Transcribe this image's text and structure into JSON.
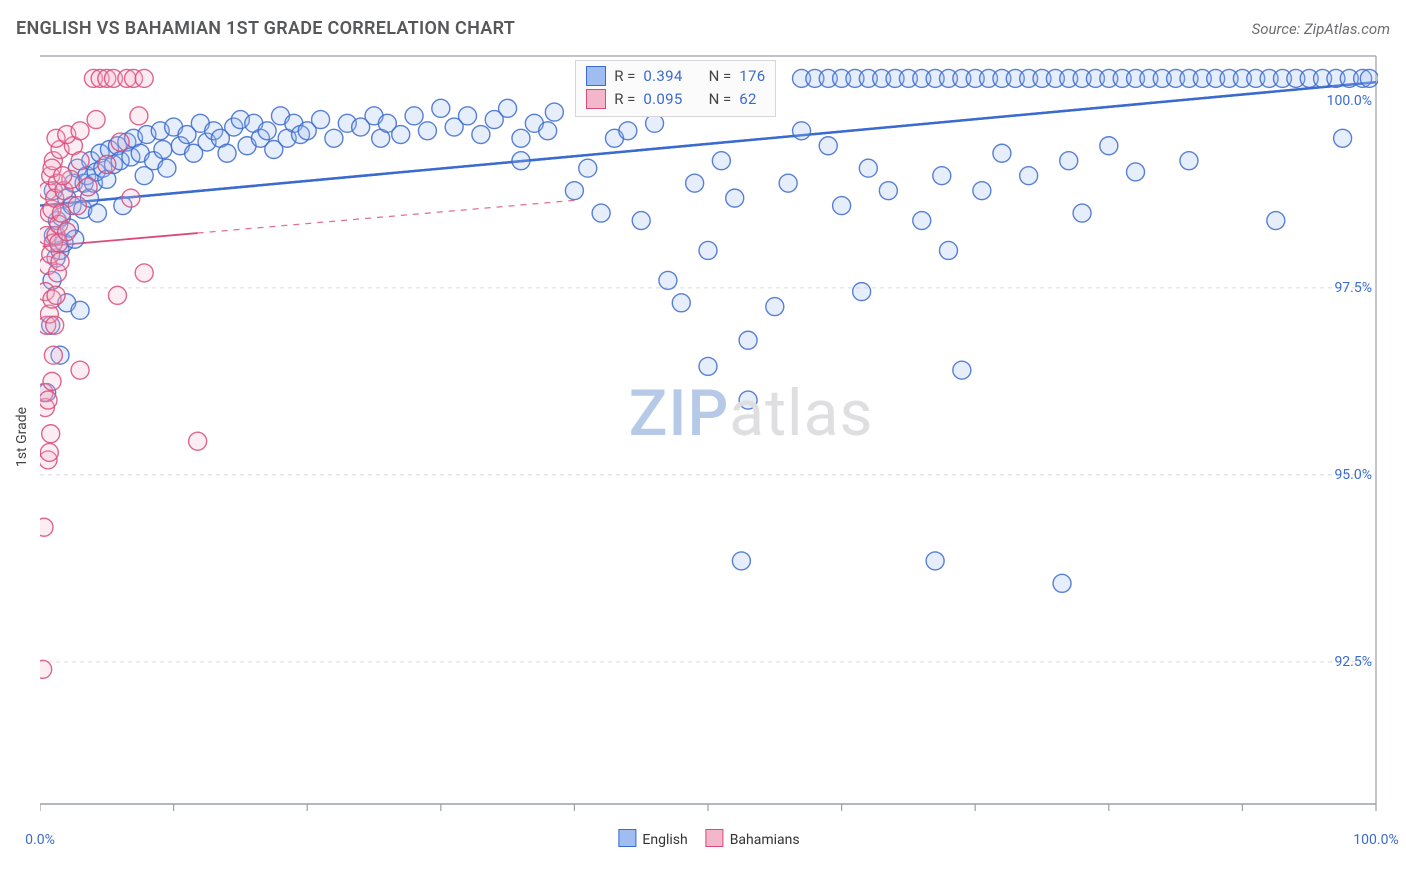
{
  "header": {
    "title": "ENGLISH VS BAHAMIAN 1ST GRADE CORRELATION CHART",
    "source_label": "Source: ZipAtlas.com"
  },
  "watermark": {
    "part1": "ZIP",
    "part2": "atlas"
  },
  "chart": {
    "type": "scatter",
    "background_color": "#ffffff",
    "border_color": "#9aa0a6",
    "grid_color": "#d9dbde",
    "grid_dash": "4,4",
    "ylabel": "1st Grade",
    "xmin": 0,
    "xmax": 100,
    "ymin": 90.6,
    "ymax": 100.6,
    "xticks": [
      0,
      10,
      20,
      30,
      40,
      50,
      60,
      70,
      80,
      90,
      100
    ],
    "xtick_labels": {
      "0": "0.0%",
      "100": "100.0%"
    },
    "ygrid": [
      92.5,
      95.0,
      97.5
    ],
    "ytick_labels": {
      "92.5": "92.5%",
      "95.0": "95.0%",
      "97.5": "97.5%",
      "100.0": "100.0%"
    },
    "marker_radius": 9,
    "marker_fill_opacity": 0.25,
    "marker_stroke_width": 1.4,
    "series": [
      {
        "name": "English",
        "color": "#3b6bcf",
        "fill": "#9fbdf0",
        "r_label": "R =",
        "n_label": "N =",
        "r_value": "0.394",
        "n_value": "176",
        "trend": {
          "y_at_x0": 98.6,
          "y_at_x100": 100.25,
          "width": 2.4,
          "dash_extent_x": 40
        },
        "points": [
          [
            0.5,
            96.1
          ],
          [
            0.8,
            97.0
          ],
          [
            0.9,
            97.6
          ],
          [
            1.0,
            98.2
          ],
          [
            1.2,
            97.9
          ],
          [
            1.3,
            98.4
          ],
          [
            1.0,
            98.8
          ],
          [
            1.5,
            96.6
          ],
          [
            1.5,
            98.0
          ],
          [
            1.6,
            98.45
          ],
          [
            1.8,
            98.1
          ],
          [
            2.0,
            98.7
          ],
          [
            2.0,
            97.3
          ],
          [
            2.2,
            98.3
          ],
          [
            2.4,
            98.6
          ],
          [
            2.5,
            98.9
          ],
          [
            2.6,
            98.15
          ],
          [
            2.8,
            99.1
          ],
          [
            3.0,
            97.2
          ],
          [
            3.2,
            98.55
          ],
          [
            3.3,
            98.9
          ],
          [
            3.5,
            99.0
          ],
          [
            3.7,
            98.7
          ],
          [
            3.8,
            99.2
          ],
          [
            4.0,
            98.9
          ],
          [
            4.2,
            99.05
          ],
          [
            4.3,
            98.5
          ],
          [
            4.5,
            99.3
          ],
          [
            4.7,
            99.1
          ],
          [
            5.0,
            98.95
          ],
          [
            5.2,
            99.35
          ],
          [
            5.5,
            99.15
          ],
          [
            5.8,
            99.4
          ],
          [
            6.0,
            99.2
          ],
          [
            6.2,
            98.6
          ],
          [
            6.5,
            99.45
          ],
          [
            6.8,
            99.25
          ],
          [
            7.0,
            99.5
          ],
          [
            7.5,
            99.3
          ],
          [
            7.8,
            99.0
          ],
          [
            8.0,
            99.55
          ],
          [
            8.5,
            99.2
          ],
          [
            9.0,
            99.6
          ],
          [
            9.2,
            99.35
          ],
          [
            9.5,
            99.1
          ],
          [
            10.0,
            99.65
          ],
          [
            10.5,
            99.4
          ],
          [
            11.0,
            99.55
          ],
          [
            11.5,
            99.3
          ],
          [
            12.0,
            99.7
          ],
          [
            12.5,
            99.45
          ],
          [
            13.0,
            99.6
          ],
          [
            13.5,
            99.5
          ],
          [
            14.0,
            99.3
          ],
          [
            14.5,
            99.65
          ],
          [
            15.0,
            99.75
          ],
          [
            15.5,
            99.4
          ],
          [
            16.0,
            99.7
          ],
          [
            16.5,
            99.5
          ],
          [
            17.0,
            99.6
          ],
          [
            17.5,
            99.35
          ],
          [
            18.0,
            99.8
          ],
          [
            18.5,
            99.5
          ],
          [
            19.0,
            99.7
          ],
          [
            19.5,
            99.55
          ],
          [
            20.0,
            99.6
          ],
          [
            21.0,
            99.75
          ],
          [
            22.0,
            99.5
          ],
          [
            23.0,
            99.7
          ],
          [
            24.0,
            99.65
          ],
          [
            25.0,
            99.8
          ],
          [
            25.5,
            99.5
          ],
          [
            26.0,
            99.7
          ],
          [
            27.0,
            99.55
          ],
          [
            28.0,
            99.8
          ],
          [
            29.0,
            99.6
          ],
          [
            30.0,
            99.9
          ],
          [
            31.0,
            99.65
          ],
          [
            32.0,
            99.8
          ],
          [
            33.0,
            99.55
          ],
          [
            34.0,
            99.75
          ],
          [
            35.0,
            99.9
          ],
          [
            36.0,
            99.5
          ],
          [
            36.0,
            99.2
          ],
          [
            37.0,
            99.7
          ],
          [
            38.0,
            99.6
          ],
          [
            38.5,
            99.85
          ],
          [
            40.0,
            98.8
          ],
          [
            41.0,
            99.1
          ],
          [
            42.0,
            98.5
          ],
          [
            43.0,
            100.3
          ],
          [
            43.0,
            99.5
          ],
          [
            44.0,
            99.6
          ],
          [
            45.0,
            98.4
          ],
          [
            46.0,
            99.7
          ],
          [
            47.0,
            97.6
          ],
          [
            48.0,
            97.3
          ],
          [
            49.0,
            100.3
          ],
          [
            49.0,
            98.9
          ],
          [
            50.0,
            98.0
          ],
          [
            50.0,
            96.45
          ],
          [
            51.0,
            100.3
          ],
          [
            51.0,
            99.2
          ],
          [
            52.0,
            98.7
          ],
          [
            52.5,
            93.85
          ],
          [
            53.0,
            96.8
          ],
          [
            53.0,
            96.0
          ],
          [
            54.0,
            100.3
          ],
          [
            55.0,
            97.25
          ],
          [
            56.0,
            98.9
          ],
          [
            57.0,
            100.3
          ],
          [
            57.0,
            99.6
          ],
          [
            58.0,
            100.3
          ],
          [
            59.0,
            99.4
          ],
          [
            59.0,
            100.3
          ],
          [
            60.0,
            100.3
          ],
          [
            60.0,
            98.6
          ],
          [
            61.0,
            100.3
          ],
          [
            61.5,
            97.45
          ],
          [
            62.0,
            100.3
          ],
          [
            62.0,
            99.1
          ],
          [
            63.0,
            100.3
          ],
          [
            63.5,
            98.8
          ],
          [
            64.0,
            100.3
          ],
          [
            65.0,
            100.3
          ],
          [
            66.0,
            100.3
          ],
          [
            66.0,
            98.4
          ],
          [
            67.0,
            100.3
          ],
          [
            67.0,
            93.85
          ],
          [
            67.5,
            99.0
          ],
          [
            68.0,
            100.3
          ],
          [
            68.0,
            98.0
          ],
          [
            69.0,
            96.4
          ],
          [
            69.0,
            100.3
          ],
          [
            70.0,
            100.3
          ],
          [
            70.5,
            98.8
          ],
          [
            71.0,
            100.3
          ],
          [
            72.0,
            100.3
          ],
          [
            72.0,
            99.3
          ],
          [
            73.0,
            100.3
          ],
          [
            74.0,
            100.3
          ],
          [
            74.0,
            99.0
          ],
          [
            75.0,
            100.3
          ],
          [
            76.0,
            100.3
          ],
          [
            76.5,
            93.55
          ],
          [
            77.0,
            100.3
          ],
          [
            77.0,
            99.2
          ],
          [
            78.0,
            100.3
          ],
          [
            78.0,
            98.5
          ],
          [
            79.0,
            100.3
          ],
          [
            80.0,
            100.3
          ],
          [
            80.0,
            99.4
          ],
          [
            81.0,
            100.3
          ],
          [
            82.0,
            100.3
          ],
          [
            82.0,
            99.05
          ],
          [
            83.0,
            100.3
          ],
          [
            84.0,
            100.3
          ],
          [
            85.0,
            100.3
          ],
          [
            86.0,
            100.3
          ],
          [
            86.0,
            99.2
          ],
          [
            87.0,
            100.3
          ],
          [
            88.0,
            100.3
          ],
          [
            89.0,
            100.3
          ],
          [
            90.0,
            100.3
          ],
          [
            91.0,
            100.3
          ],
          [
            92.0,
            100.3
          ],
          [
            92.5,
            98.4
          ],
          [
            93.0,
            100.3
          ],
          [
            94.0,
            100.3
          ],
          [
            95.0,
            100.3
          ],
          [
            96.0,
            100.3
          ],
          [
            97.0,
            100.3
          ],
          [
            97.5,
            99.5
          ],
          [
            98.0,
            100.3
          ],
          [
            99.0,
            100.3
          ],
          [
            99.5,
            100.3
          ]
        ]
      },
      {
        "name": "Bahamians",
        "color": "#d94c7a",
        "fill": "#f3b6ca",
        "r_label": "R =",
        "n_label": "N =",
        "r_value": "0.095",
        "n_value": "62",
        "trend": {
          "y_at_x0": 98.05,
          "y_at_x100": 99.6,
          "width": 1.8,
          "dash_extent_x": 40
        },
        "points": [
          [
            0.2,
            92.4
          ],
          [
            0.3,
            94.3
          ],
          [
            0.6,
            95.2
          ],
          [
            0.4,
            95.9
          ],
          [
            0.7,
            95.3
          ],
          [
            0.3,
            96.1
          ],
          [
            0.6,
            96.0
          ],
          [
            0.8,
            95.55
          ],
          [
            0.5,
            97.0
          ],
          [
            0.9,
            96.25
          ],
          [
            0.4,
            97.45
          ],
          [
            0.7,
            97.15
          ],
          [
            1.0,
            96.6
          ],
          [
            0.6,
            97.8
          ],
          [
            0.9,
            97.35
          ],
          [
            1.1,
            97.0
          ],
          [
            0.5,
            98.2
          ],
          [
            0.8,
            97.95
          ],
          [
            1.2,
            97.4
          ],
          [
            0.7,
            98.5
          ],
          [
            1.0,
            98.1
          ],
          [
            1.3,
            97.7
          ],
          [
            0.6,
            98.8
          ],
          [
            0.9,
            98.55
          ],
          [
            1.2,
            98.2
          ],
          [
            1.5,
            97.85
          ],
          [
            0.8,
            99.0
          ],
          [
            1.1,
            98.7
          ],
          [
            1.4,
            98.35
          ],
          [
            1.0,
            99.2
          ],
          [
            1.3,
            98.9
          ],
          [
            1.6,
            98.5
          ],
          [
            0.9,
            99.1
          ],
          [
            1.4,
            98.1
          ],
          [
            1.8,
            98.8
          ],
          [
            1.5,
            99.35
          ],
          [
            1.2,
            99.5
          ],
          [
            2.0,
            98.25
          ],
          [
            2.3,
            98.95
          ],
          [
            1.7,
            99.0
          ],
          [
            2.5,
            99.4
          ],
          [
            2.0,
            99.55
          ],
          [
            2.8,
            98.6
          ],
          [
            3.0,
            99.2
          ],
          [
            3.0,
            99.6
          ],
          [
            3.0,
            96.4
          ],
          [
            3.6,
            98.85
          ],
          [
            4.2,
            99.75
          ],
          [
            4.0,
            100.3
          ],
          [
            4.5,
            100.3
          ],
          [
            5.0,
            99.15
          ],
          [
            5.0,
            100.3
          ],
          [
            5.5,
            100.3
          ],
          [
            5.8,
            97.4
          ],
          [
            6.0,
            99.45
          ],
          [
            6.5,
            100.3
          ],
          [
            6.8,
            98.7
          ],
          [
            7.0,
            100.3
          ],
          [
            7.4,
            99.8
          ],
          [
            7.8,
            97.7
          ],
          [
            7.8,
            100.3
          ],
          [
            11.8,
            95.45
          ]
        ]
      }
    ],
    "bottom_legend": [
      {
        "label": "English",
        "fill": "#9fbdf0",
        "stroke": "#3b6bcf"
      },
      {
        "label": "Bahamians",
        "fill": "#f3b6ca",
        "stroke": "#d94c7a"
      }
    ]
  }
}
